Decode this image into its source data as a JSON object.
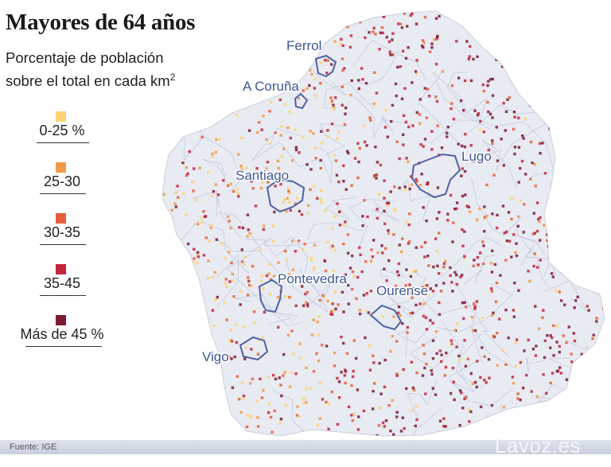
{
  "title": "Mayores de 64 años",
  "subtitle_line1": "Porcentaje de población",
  "subtitle_line2": "sobre el total en cada km",
  "subtitle_sup": "2",
  "legend": [
    {
      "label": "0-25 %",
      "color": "#fbd475"
    },
    {
      "label": "25-30",
      "color": "#f09a48"
    },
    {
      "label": "30-35",
      "color": "#e65f3a"
    },
    {
      "label": "35-45",
      "color": "#c2263a"
    },
    {
      "label": "Más de 45 %",
      "color": "#7d1b33"
    }
  ],
  "cities": [
    "Ferrol",
    "A Coruña",
    "Santiago",
    "Lugo",
    "Pontevedra",
    "Ourense",
    "Vigo"
  ],
  "colors": {
    "region_fill": "#e9ebf2",
    "boundary": "#c4cbe0",
    "city_outline": "#4d62a3",
    "city_label": "#3e5795"
  },
  "footer": {
    "source": "Fuente: IGE",
    "brand": "Lavoz.es"
  }
}
